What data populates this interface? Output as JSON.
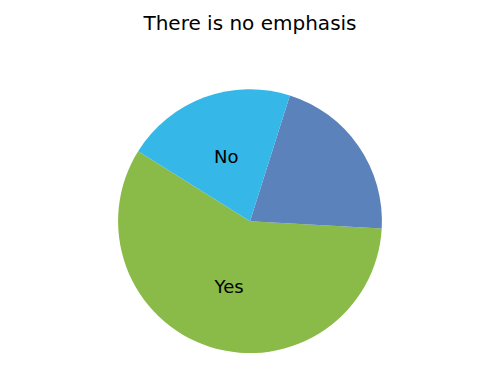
{
  "chart_data": {
    "type": "pie",
    "title": "There is no emphasis",
    "categories": [
      "Yes",
      null,
      "No"
    ],
    "values": [
      58,
      21,
      21
    ],
    "colors": [
      "#8aba47",
      "#5b82ba",
      "#35b8e8"
    ]
  }
}
